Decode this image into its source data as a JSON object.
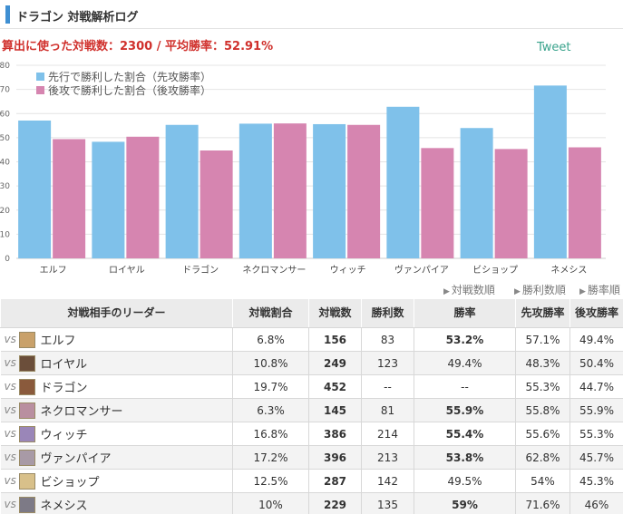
{
  "header": {
    "title": "ドラゴン 対戦解析ログ"
  },
  "summary": "算出に使った対戦数：2300 / 平均勝率：52.91%",
  "tweet_label": "Tweet",
  "chart_data": {
    "type": "bar",
    "categories": [
      "エルフ",
      "ロイヤル",
      "ドラゴン",
      "ネクロマンサー",
      "ウィッチ",
      "ヴァンパイア",
      "ビショップ",
      "ネメシス"
    ],
    "series": [
      {
        "name": "先行で勝利した割合（先攻勝率）",
        "color": "#7fc1ea",
        "values": [
          57.1,
          48.3,
          55.3,
          55.8,
          55.6,
          62.8,
          54.0,
          71.6
        ]
      },
      {
        "name": "後攻で勝利した割合（後攻勝率）",
        "color": "#d685b0",
        "values": [
          49.4,
          50.4,
          44.7,
          55.9,
          55.3,
          45.7,
          45.3,
          46.0
        ]
      }
    ],
    "ylim": [
      0,
      80
    ],
    "yticks": [
      "0",
      "10",
      "20",
      "30",
      "40",
      "50",
      "60",
      "70",
      "80"
    ],
    "legend": "top-left"
  },
  "sort_links": [
    "対戦数順",
    "勝利数順",
    "勝率順"
  ],
  "table": {
    "headers": [
      "対戦相手のリーダー",
      "対戦割合",
      "対戦数",
      "勝利数",
      "勝率",
      "先攻勝率",
      "後攻勝率"
    ],
    "vs_label": "vs",
    "rows": [
      {
        "leader": "エルフ",
        "share": "6.8%",
        "games": "156",
        "wins": "83",
        "rate": "53.2%",
        "first": "57.1%",
        "second": "49.4%",
        "avatar": "#c9a16a",
        "hi": true
      },
      {
        "leader": "ロイヤル",
        "share": "10.8%",
        "games": "249",
        "wins": "123",
        "rate": "49.4%",
        "first": "48.3%",
        "second": "50.4%",
        "avatar": "#6b4e3a",
        "hi": false
      },
      {
        "leader": "ドラゴン",
        "share": "19.7%",
        "games": "452",
        "wins": "--",
        "rate": "--",
        "first": "55.3%",
        "second": "44.7%",
        "avatar": "#8a5a3c",
        "hi": false
      },
      {
        "leader": "ネクロマンサー",
        "share": "6.3%",
        "games": "145",
        "wins": "81",
        "rate": "55.9%",
        "first": "55.8%",
        "second": "55.9%",
        "avatar": "#b98fa0",
        "hi": true
      },
      {
        "leader": "ウィッチ",
        "share": "16.8%",
        "games": "386",
        "wins": "214",
        "rate": "55.4%",
        "first": "55.6%",
        "second": "55.3%",
        "avatar": "#9a86b8",
        "hi": true
      },
      {
        "leader": "ヴァンパイア",
        "share": "17.2%",
        "games": "396",
        "wins": "213",
        "rate": "53.8%",
        "first": "62.8%",
        "second": "45.7%",
        "avatar": "#a89aa6",
        "hi": true
      },
      {
        "leader": "ビショップ",
        "share": "12.5%",
        "games": "287",
        "wins": "142",
        "rate": "49.5%",
        "first": "54%",
        "second": "45.3%",
        "avatar": "#d8c08a",
        "hi": false
      },
      {
        "leader": "ネメシス",
        "share": "10%",
        "games": "229",
        "wins": "135",
        "rate": "59%",
        "first": "71.6%",
        "second": "46%",
        "avatar": "#7d7a86",
        "hi": true
      }
    ]
  }
}
